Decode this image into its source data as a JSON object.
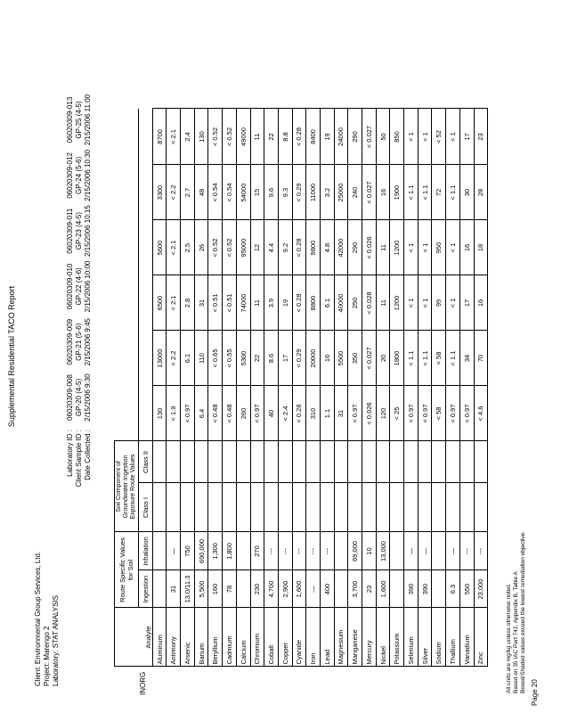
{
  "title": "Supplemental Residential TACO Report",
  "client": {
    "label": "Client:",
    "value": "Environmental Group Services, Ltd."
  },
  "project": {
    "label": "Project:",
    "value": "Marengo 2"
  },
  "laboratory": {
    "label": "Laboratory:",
    "value": "STAT ANALYSIS"
  },
  "sample_header": {
    "lab_id_label": "Laboratory ID :",
    "client_id_label": "Client Sample ID :",
    "date_label": "Date Collected :",
    "samples": [
      {
        "lab_id": "06020309-008",
        "client_id": "GP-20 (4-5)",
        "date": "2/15/2006 9:30"
      },
      {
        "lab_id": "06020309-009",
        "client_id": "GP-21 (5-6)",
        "date": "2/15/2006 9:45"
      },
      {
        "lab_id": "06020309-010",
        "client_id": "GP-22 (4-6)",
        "date": "2/15/2006 10:00"
      },
      {
        "lab_id": "06020309-011",
        "client_id": "GP-23 (4-5)",
        "date": "2/15/2006 10:15"
      },
      {
        "lab_id": "06020309-012",
        "client_id": "GP-24 (5-6)",
        "date": "2/15/2006 10:30"
      },
      {
        "lab_id": "06020309-013",
        "client_id": "GP-25 (4-5)",
        "date": "2/15/2006 11:00"
      }
    ]
  },
  "table": {
    "group": "INORG",
    "analyte_header": "Analyte",
    "route_header": "Route Specific Values for Soil",
    "ingestion_header": "Ingestion",
    "inhalation_header": "Inhalation",
    "gw_header": "Soil Component of Groundwater Ingestion Exposure Route Values",
    "class1_header": "Class I",
    "class2_header": "Class II",
    "rows": [
      {
        "analyte": "Aluminum",
        "ingestion": "",
        "inhalation": "",
        "class1": "",
        "class2": "",
        "values": [
          "130",
          "13000",
          "6500",
          "5600",
          "3300",
          "8700"
        ]
      },
      {
        "analyte": "Antimony",
        "ingestion": "31",
        "inhalation": "—",
        "class1": "",
        "class2": "",
        "values": [
          "< 1.9",
          "< 2.2",
          "< 2.1",
          "< 2.1",
          "< 2.2",
          "< 2.1"
        ]
      },
      {
        "analyte": "Arsenic",
        "ingestion": "13.0/11.3",
        "inhalation": "750",
        "class1": "",
        "class2": "",
        "values": [
          "< 0.97",
          "6.1",
          "2.8",
          "2.5",
          "2.7",
          "2.4"
        ]
      },
      {
        "analyte": "Barium",
        "ingestion": "5,500",
        "inhalation": "690,000",
        "class1": "",
        "class2": "",
        "values": [
          "6.4",
          "110",
          "31",
          "26",
          "48",
          "130"
        ]
      },
      {
        "analyte": "Beryllium",
        "ingestion": "160",
        "inhalation": "1,300",
        "class1": "",
        "class2": "",
        "values": [
          "< 0.48",
          "< 0.65",
          "< 0.51",
          "< 0.52",
          "< 0.54",
          "< 0.52"
        ]
      },
      {
        "analyte": "Cadmium",
        "ingestion": "78",
        "inhalation": "1,800",
        "class1": "",
        "class2": "",
        "values": [
          "< 0.48",
          "< 0.55",
          "< 0.51",
          "< 0.52",
          "< 0.54",
          "< 0.52"
        ]
      },
      {
        "analyte": "Calcium",
        "ingestion": "",
        "inhalation": "",
        "class1": "",
        "class2": "",
        "values": [
          "260",
          "5300",
          "74000",
          "95000",
          "54000",
          "49000"
        ]
      },
      {
        "analyte": "Chromium",
        "ingestion": "230",
        "inhalation": "270",
        "class1": "",
        "class2": "",
        "values": [
          "< 0.97",
          "22",
          "11",
          "12",
          "15",
          "11"
        ]
      },
      {
        "analyte": "Cobalt",
        "ingestion": "4,700",
        "inhalation": "---",
        "class1": "",
        "class2": "",
        "values": [
          "40",
          "8.6",
          "3.9",
          "4.4",
          "9.6",
          "22"
        ]
      },
      {
        "analyte": "Copper",
        "ingestion": "2,900",
        "inhalation": "---",
        "class1": "",
        "class2": "",
        "values": [
          "< 2.4",
          "17",
          "19",
          "9.2",
          "9.3",
          "8.8"
        ]
      },
      {
        "analyte": "Cyanide",
        "ingestion": "1,600",
        "inhalation": "---",
        "class1": "",
        "class2": "",
        "values": [
          "< 0.26",
          "< 0.29",
          "< 0.28",
          "< 0.28",
          "< 0.29",
          "< 0.28"
        ]
      },
      {
        "analyte": "Iron",
        "ingestion": "—",
        "inhalation": "---",
        "class1": "",
        "class2": "",
        "values": [
          "310",
          "20000",
          "8800",
          "9800",
          "11000",
          "8400"
        ]
      },
      {
        "analyte": "Lead",
        "ingestion": "400",
        "inhalation": "---",
        "class1": "",
        "class2": "",
        "values": [
          "1.1",
          "16",
          "6.1",
          "4.8",
          "3.2",
          "19"
        ]
      },
      {
        "analyte": "Magnesium",
        "ingestion": "",
        "inhalation": "",
        "class1": "",
        "class2": "",
        "values": [
          "31",
          "5500",
          "40000",
          "42000",
          "25000",
          "24000"
        ]
      },
      {
        "analyte": "Manganese",
        "ingestion": "3,700",
        "inhalation": "69,000",
        "class1": "",
        "class2": "",
        "values": [
          "< 0.97",
          "350",
          "250",
          "290",
          "240",
          "290"
        ]
      },
      {
        "analyte": "Mercury",
        "ingestion": "23",
        "inhalation": "10",
        "class1": "",
        "class2": "",
        "values": [
          "< 0.026",
          "< 0.027",
          "< 0.028",
          "< 0.026",
          "< 0.027",
          "< 0.027"
        ]
      },
      {
        "analyte": "Nickel",
        "ingestion": "1,600",
        "inhalation": "13,000",
        "class1": "",
        "class2": "",
        "values": [
          "120",
          "20",
          "11",
          "11",
          "16",
          "50"
        ]
      },
      {
        "analyte": "Potassium",
        "ingestion": "",
        "inhalation": "",
        "class1": "",
        "class2": "",
        "values": [
          "< 25",
          "1800",
          "1200",
          "1200",
          "1900",
          "850"
        ]
      },
      {
        "analyte": "Selenium",
        "ingestion": "390",
        "inhalation": "—",
        "class1": "",
        "class2": "",
        "values": [
          "< 0.97",
          "< 1.1",
          "< 1",
          "< 1",
          "< 1.1",
          "< 1"
        ]
      },
      {
        "analyte": "Silver",
        "ingestion": "390",
        "inhalation": "—",
        "class1": "",
        "class2": "",
        "values": [
          "< 0.97",
          "< 1.1",
          "< 1",
          "< 1",
          "< 1.1",
          "< 1"
        ]
      },
      {
        "analyte": "Sodium",
        "ingestion": "",
        "inhalation": "",
        "class1": "",
        "class2": "",
        "values": [
          "< 58",
          "< 58",
          "99",
          "950",
          "72",
          "< 52"
        ]
      },
      {
        "analyte": "Thallium",
        "ingestion": "6.3",
        "inhalation": "—",
        "class1": "",
        "class2": "",
        "values": [
          "< 0.97",
          "< 1.1",
          "< 1",
          "< 1",
          "< 1.1",
          "< 1"
        ]
      },
      {
        "analyte": "Vanadium",
        "ingestion": "550",
        "inhalation": "---",
        "class1": "",
        "class2": "",
        "values": [
          "< 0.97",
          "34",
          "17",
          "16",
          "30",
          "17"
        ]
      },
      {
        "analyte": "Zinc",
        "ingestion": "23,000",
        "inhalation": "---",
        "class1": "",
        "class2": "",
        "values": [
          "< 4.6",
          "70",
          "16",
          "18",
          "28",
          "23"
        ]
      }
    ]
  },
  "footnotes": [
    "All units are mg/kg unless otherwise noted.",
    "Based on 35 IAC Part 742, Appendix B, Table A",
    "Boxed/Shaded values exceed the lowest remediation objective."
  ],
  "page_number": "Page 20"
}
